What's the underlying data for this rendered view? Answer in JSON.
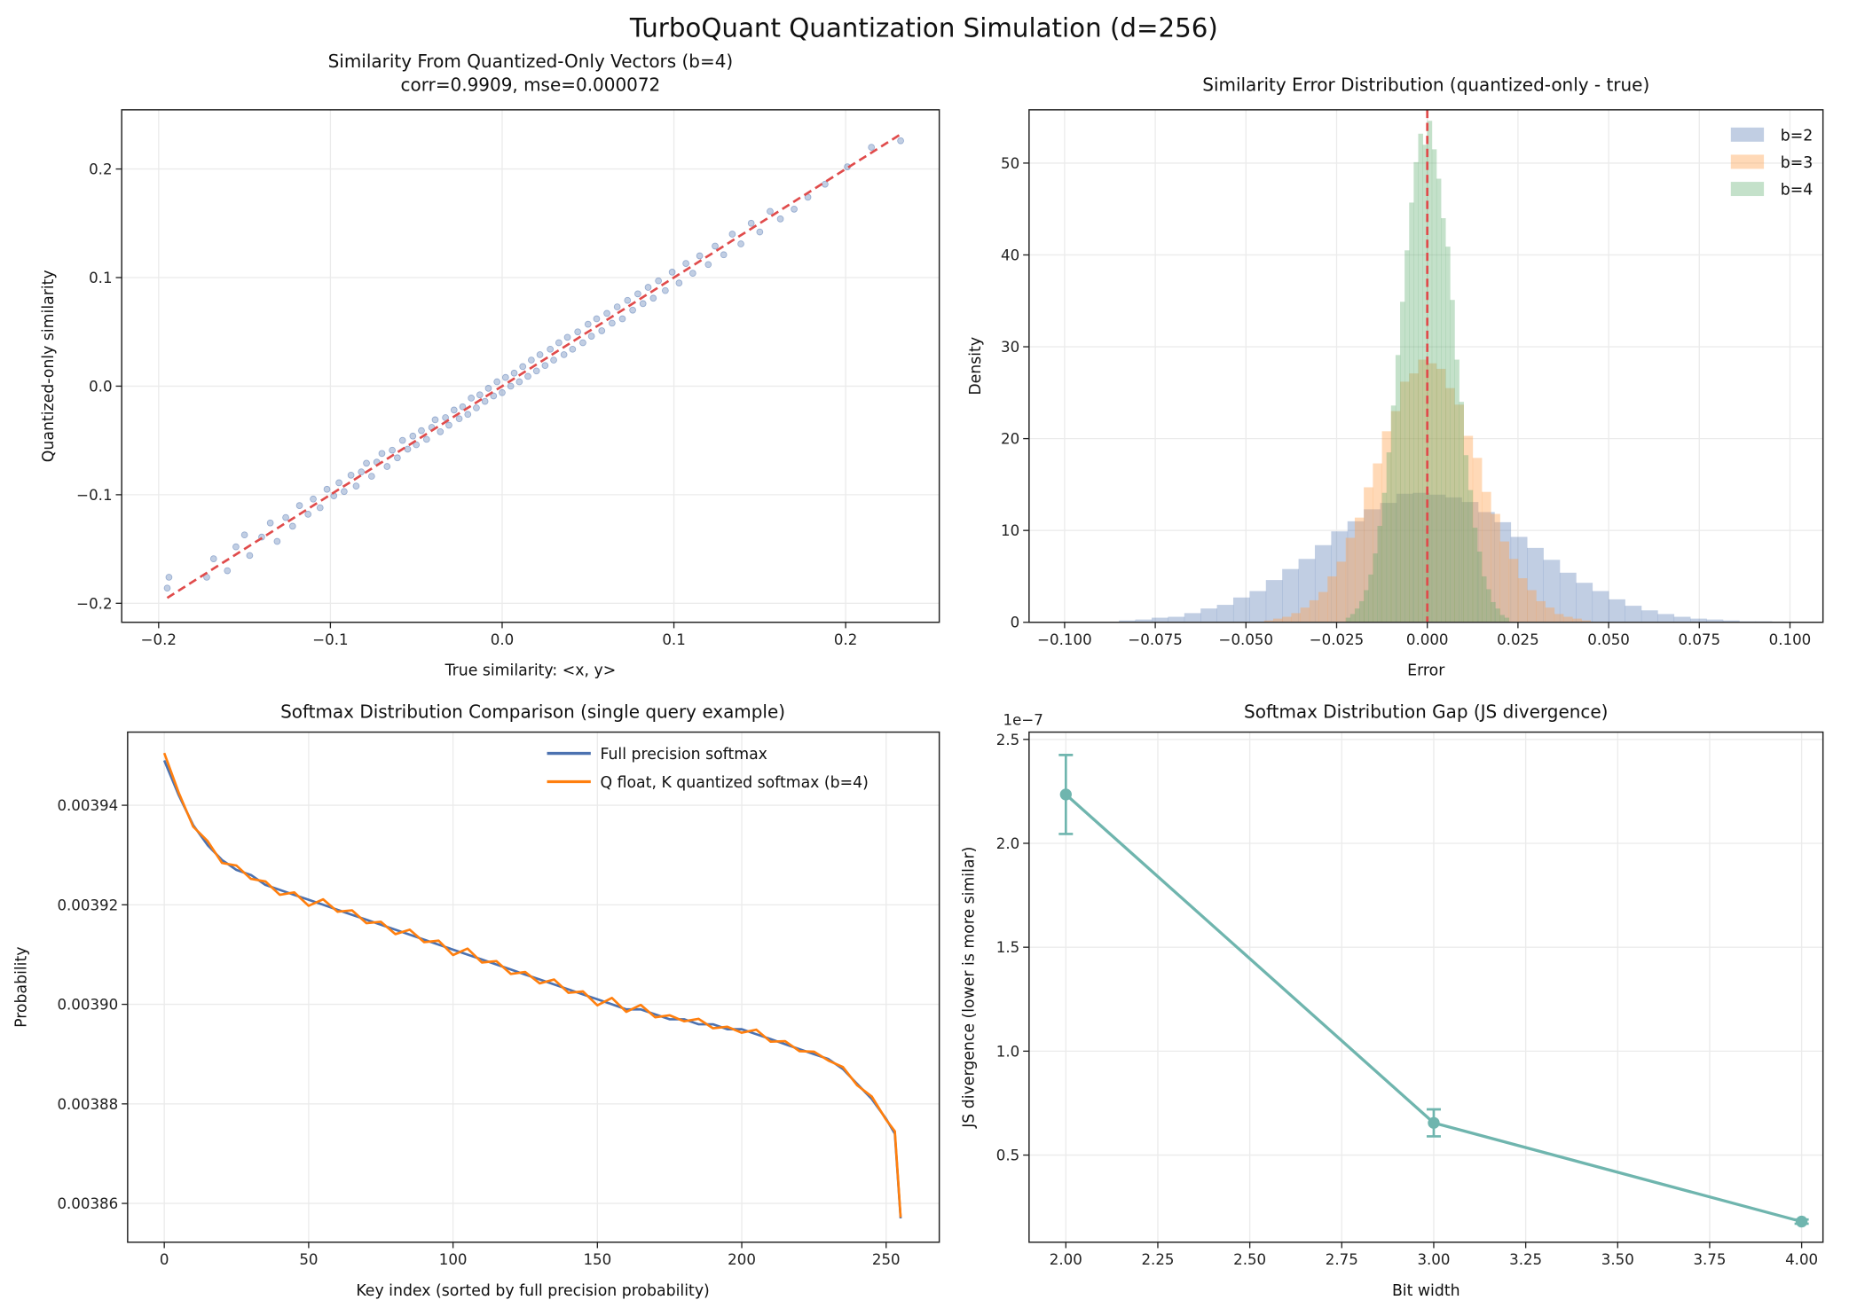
{
  "figure_title": "TurboQuant Quantization Simulation (d=256)",
  "chart_data": [
    {
      "type": "scatter",
      "title": "Similarity From Quantized-Only Vectors (b=4)",
      "subtitle": "corr=0.9909, mse=0.000072",
      "xlabel": "True similarity: <x, y>",
      "ylabel": "Quantized-only similarity",
      "xlim": [
        -0.2215,
        0.2545
      ],
      "ylim": [
        -0.2175,
        0.2545
      ],
      "grid": true,
      "x_ticks": [
        {
          "v": -0.2,
          "label": "−0.2"
        },
        {
          "v": -0.1,
          "label": "−0.1"
        },
        {
          "v": 0,
          "label": "0.0"
        },
        {
          "v": 0.1,
          "label": "0.1"
        },
        {
          "v": 0.2,
          "label": "0.2"
        }
      ],
      "y_ticks": [
        {
          "v": -0.2,
          "label": "−0.2"
        },
        {
          "v": -0.1,
          "label": "−0.1"
        },
        {
          "v": 0,
          "label": "0.0"
        },
        {
          "v": 0.1,
          "label": "0.1"
        },
        {
          "v": 0.2,
          "label": "0.2"
        }
      ],
      "point_color": "#4c72b0",
      "reference_line": {
        "from": [
          -0.195,
          -0.195
        ],
        "to": [
          0.233,
          0.233
        ],
        "color": "#e04b4b",
        "style": "dashed"
      },
      "points": [
        [
          -0.195,
          -0.186
        ],
        [
          -0.194,
          -0.176
        ],
        [
          -0.172,
          -0.176
        ],
        [
          -0.168,
          -0.159
        ],
        [
          -0.16,
          -0.17
        ],
        [
          -0.155,
          -0.148
        ],
        [
          -0.15,
          -0.137
        ],
        [
          -0.147,
          -0.156
        ],
        [
          -0.14,
          -0.139
        ],
        [
          -0.135,
          -0.126
        ],
        [
          -0.131,
          -0.143
        ],
        [
          -0.126,
          -0.121
        ],
        [
          -0.122,
          -0.129
        ],
        [
          -0.118,
          -0.11
        ],
        [
          -0.113,
          -0.118
        ],
        [
          -0.11,
          -0.104
        ],
        [
          -0.106,
          -0.112
        ],
        [
          -0.102,
          -0.095
        ],
        [
          -0.098,
          -0.101
        ],
        [
          -0.095,
          -0.089
        ],
        [
          -0.092,
          -0.097
        ],
        [
          -0.088,
          -0.082
        ],
        [
          -0.085,
          -0.092
        ],
        [
          -0.082,
          -0.079
        ],
        [
          -0.079,
          -0.071
        ],
        [
          -0.076,
          -0.083
        ],
        [
          -0.073,
          -0.07
        ],
        [
          -0.07,
          -0.062
        ],
        [
          -0.067,
          -0.074
        ],
        [
          -0.064,
          -0.059
        ],
        [
          -0.061,
          -0.066
        ],
        [
          -0.058,
          -0.05
        ],
        [
          -0.055,
          -0.058
        ],
        [
          -0.052,
          -0.046
        ],
        [
          -0.05,
          -0.054
        ],
        [
          -0.047,
          -0.041
        ],
        [
          -0.044,
          -0.049
        ],
        [
          -0.041,
          -0.038
        ],
        [
          -0.039,
          -0.031
        ],
        [
          -0.036,
          -0.042
        ],
        [
          -0.033,
          -0.029
        ],
        [
          -0.031,
          -0.036
        ],
        [
          -0.028,
          -0.022
        ],
        [
          -0.025,
          -0.03
        ],
        [
          -0.023,
          -0.019
        ],
        [
          -0.02,
          -0.026
        ],
        [
          -0.018,
          -0.011
        ],
        [
          -0.015,
          -0.02
        ],
        [
          -0.013,
          -0.008
        ],
        [
          -0.01,
          -0.014
        ],
        [
          -0.008,
          -0.002
        ],
        [
          -0.005,
          -0.009
        ],
        [
          -0.003,
          0.004
        ],
        [
          0.0,
          -0.006
        ],
        [
          0.002,
          0.008
        ],
        [
          0.005,
          0.0
        ],
        [
          0.007,
          0.012
        ],
        [
          0.01,
          0.004
        ],
        [
          0.012,
          0.018
        ],
        [
          0.015,
          0.009
        ],
        [
          0.017,
          0.024
        ],
        [
          0.02,
          0.014
        ],
        [
          0.022,
          0.029
        ],
        [
          0.025,
          0.019
        ],
        [
          0.028,
          0.034
        ],
        [
          0.03,
          0.024
        ],
        [
          0.033,
          0.04
        ],
        [
          0.036,
          0.029
        ],
        [
          0.038,
          0.045
        ],
        [
          0.041,
          0.034
        ],
        [
          0.044,
          0.05
        ],
        [
          0.047,
          0.04
        ],
        [
          0.05,
          0.057
        ],
        [
          0.052,
          0.046
        ],
        [
          0.055,
          0.062
        ],
        [
          0.058,
          0.051
        ],
        [
          0.061,
          0.067
        ],
        [
          0.064,
          0.058
        ],
        [
          0.067,
          0.073
        ],
        [
          0.07,
          0.062
        ],
        [
          0.073,
          0.079
        ],
        [
          0.076,
          0.07
        ],
        [
          0.079,
          0.085
        ],
        [
          0.082,
          0.076
        ],
        [
          0.085,
          0.091
        ],
        [
          0.088,
          0.081
        ],
        [
          0.091,
          0.097
        ],
        [
          0.095,
          0.088
        ],
        [
          0.099,
          0.105
        ],
        [
          0.103,
          0.095
        ],
        [
          0.107,
          0.113
        ],
        [
          0.111,
          0.104
        ],
        [
          0.115,
          0.12
        ],
        [
          0.12,
          0.112
        ],
        [
          0.124,
          0.129
        ],
        [
          0.129,
          0.121
        ],
        [
          0.134,
          0.14
        ],
        [
          0.139,
          0.131
        ],
        [
          0.145,
          0.15
        ],
        [
          0.15,
          0.142
        ],
        [
          0.156,
          0.161
        ],
        [
          0.162,
          0.154
        ],
        [
          0.17,
          0.163
        ],
        [
          0.178,
          0.174
        ],
        [
          0.188,
          0.186
        ],
        [
          0.201,
          0.202
        ],
        [
          0.215,
          0.22
        ],
        [
          0.232,
          0.226
        ]
      ]
    },
    {
      "type": "histogram",
      "title": "Similarity Error Distribution (quantized-only - true)",
      "xlabel": "Error",
      "ylabel": "Density",
      "xlim": [
        -0.1098,
        0.1091
      ],
      "ylim": [
        0,
        55.8
      ],
      "grid": true,
      "legend": "top-right",
      "x_ticks": [
        {
          "v": -0.1,
          "label": "−0.100"
        },
        {
          "v": -0.075,
          "label": "−0.075"
        },
        {
          "v": -0.05,
          "label": "−0.050"
        },
        {
          "v": -0.025,
          "label": "−0.025"
        },
        {
          "v": 0,
          "label": "0.000"
        },
        {
          "v": 0.025,
          "label": "0.025"
        },
        {
          "v": 0.05,
          "label": "0.050"
        },
        {
          "v": 0.075,
          "label": "0.075"
        },
        {
          "v": 0.1,
          "label": "0.100"
        }
      ],
      "y_ticks": [
        {
          "v": 0,
          "label": "0"
        },
        {
          "v": 10,
          "label": "10"
        },
        {
          "v": 20,
          "label": "20"
        },
        {
          "v": 30,
          "label": "30"
        },
        {
          "v": 40,
          "label": "40"
        },
        {
          "v": 50,
          "label": "50"
        }
      ],
      "reference_line": {
        "x": 0,
        "color": "#e04b4b",
        "style": "dashed"
      },
      "series": [
        {
          "name": "b=2",
          "color": "#4c72b0",
          "bin_start": -0.085,
          "bin_width": 0.0045,
          "density": [
            0.2,
            0.3,
            0.5,
            0.6,
            1.0,
            1.5,
            1.9,
            2.7,
            3.4,
            4.6,
            5.8,
            6.9,
            8.4,
            9.9,
            11.0,
            12.3,
            13.0,
            14.0,
            14.1,
            13.9,
            13.6,
            13.1,
            12.0,
            10.9,
            9.3,
            8.1,
            6.8,
            5.4,
            4.3,
            3.4,
            2.5,
            1.8,
            1.3,
            0.9,
            0.6,
            0.4,
            0.3,
            0.2,
            0.1,
            0.1
          ]
        },
        {
          "name": "b=3",
          "color": "#ff9f4a",
          "bin_start": -0.045,
          "bin_width": 0.0025,
          "density": [
            0.2,
            0.4,
            0.6,
            1.0,
            1.6,
            2.4,
            3.3,
            5.0,
            6.6,
            9.2,
            11.4,
            14.7,
            17.3,
            20.8,
            23.0,
            26.2,
            27.1,
            28.6,
            28.2,
            27.6,
            25.5,
            23.7,
            20.3,
            17.9,
            14.2,
            11.8,
            8.8,
            6.9,
            4.8,
            3.5,
            2.3,
            1.6,
            0.9,
            0.6,
            0.4,
            0.2
          ]
        },
        {
          "name": "b=4",
          "color": "#55a868",
          "bin_start": -0.0225,
          "bin_width": 0.00125,
          "density": [
            0.5,
            0.9,
            1.5,
            2.3,
            3.5,
            5.2,
            7.5,
            10.5,
            14.1,
            18.5,
            23.6,
            29.1,
            34.9,
            40.5,
            45.7,
            50.1,
            53.2,
            52.0,
            54.6,
            51.5,
            48.3,
            44.0,
            40.9,
            35.1,
            28.6,
            24.0,
            18.2,
            14.4,
            10.3,
            7.7,
            5.0,
            3.6,
            2.2,
            1.5,
            0.8,
            0.5
          ]
        }
      ]
    },
    {
      "type": "line",
      "title": "Softmax Distribution Comparison (single query example)",
      "xlabel": "Key index (sorted by full precision probability)",
      "ylabel": "Probability",
      "xlim": [
        -12.7,
        268.4
      ],
      "ylim": [
        0.0038522,
        0.0039547
      ],
      "grid": true,
      "legend": "top-right",
      "x_ticks": [
        {
          "v": 0,
          "label": "0"
        },
        {
          "v": 50,
          "label": "50"
        },
        {
          "v": 100,
          "label": "100"
        },
        {
          "v": 150,
          "label": "150"
        },
        {
          "v": 200,
          "label": "200"
        },
        {
          "v": 250,
          "label": "250"
        }
      ],
      "y_ticks": [
        {
          "v": 0.00386,
          "label": "0.00386"
        },
        {
          "v": 0.00388,
          "label": "0.00388"
        },
        {
          "v": 0.0039,
          "label": "0.00390"
        },
        {
          "v": 0.00392,
          "label": "0.00392"
        },
        {
          "v": 0.00394,
          "label": "0.00394"
        }
      ],
      "x": [
        0,
        5,
        10,
        15,
        20,
        25,
        30,
        35,
        40,
        45,
        50,
        55,
        60,
        65,
        70,
        75,
        80,
        85,
        90,
        95,
        100,
        105,
        110,
        115,
        120,
        125,
        130,
        135,
        140,
        145,
        150,
        155,
        160,
        165,
        170,
        175,
        180,
        185,
        190,
        195,
        200,
        205,
        210,
        215,
        220,
        225,
        230,
        235,
        240,
        245,
        250,
        253,
        255
      ],
      "series": [
        {
          "name": "Full precision softmax",
          "color": "#4c72b0",
          "values": [
            0.003949,
            0.003942,
            0.003936,
            0.003932,
            0.003929,
            0.003927,
            0.003926,
            0.003924,
            0.003923,
            0.003922,
            0.003921,
            0.00392,
            0.003919,
            0.003918,
            0.003917,
            0.003916,
            0.003915,
            0.003914,
            0.003913,
            0.003912,
            0.003911,
            0.00391,
            0.003909,
            0.003908,
            0.003907,
            0.003906,
            0.003905,
            0.003904,
            0.003903,
            0.003902,
            0.003901,
            0.0039,
            0.003899,
            0.003899,
            0.003898,
            0.003897,
            0.003897,
            0.003896,
            0.003896,
            0.003895,
            0.003895,
            0.003894,
            0.003893,
            0.003892,
            0.003891,
            0.00389,
            0.003889,
            0.003887,
            0.003884,
            0.003881,
            0.003877,
            0.003874,
            0.003857
          ]
        },
        {
          "name": "Q float, K quantized softmax (b=4)",
          "color": "#ff7f0e",
          "values": [
            0.0039505,
            0.0039425,
            0.0039357,
            0.0039328,
            0.0039284,
            0.0039279,
            0.0039252,
            0.0039247,
            0.003922,
            0.0039225,
            0.0039198,
            0.0039211,
            0.0039186,
            0.0039189,
            0.0039163,
            0.0039166,
            0.0039141,
            0.003915,
            0.0039125,
            0.0039128,
            0.0039099,
            0.0039112,
            0.0039084,
            0.0039087,
            0.0039061,
            0.0039065,
            0.0039042,
            0.003905,
            0.0039023,
            0.0039026,
            0.0038998,
            0.0039013,
            0.0038985,
            0.0038999,
            0.0038974,
            0.0038978,
            0.0038966,
            0.0038971,
            0.0038952,
            0.0038955,
            0.0038943,
            0.0038949,
            0.0038925,
            0.0038926,
            0.0038906,
            0.0038905,
            0.0038887,
            0.0038874,
            0.0038837,
            0.0038815,
            0.0038768,
            0.0038745,
            0.0038572
          ]
        }
      ]
    },
    {
      "type": "line",
      "title": "Softmax Distribution Gap (JS divergence)",
      "xlabel": "Bit width",
      "ylabel": "JS divergence (lower is more similar)",
      "y_offset_label": "1e−7",
      "xlim": [
        1.9,
        4.058
      ],
      "ylim": [
        0.0807,
        2.535
      ],
      "grid": true,
      "x_ticks": [
        {
          "v": 2,
          "label": "2.00"
        },
        {
          "v": 2.25,
          "label": "2.25"
        },
        {
          "v": 2.5,
          "label": "2.50"
        },
        {
          "v": 2.75,
          "label": "2.75"
        },
        {
          "v": 3,
          "label": "3.00"
        },
        {
          "v": 3.25,
          "label": "3.25"
        },
        {
          "v": 3.5,
          "label": "3.50"
        },
        {
          "v": 3.75,
          "label": "3.75"
        },
        {
          "v": 4,
          "label": "4.00"
        }
      ],
      "y_ticks": [
        {
          "v": 0.5,
          "label": "0.5"
        },
        {
          "v": 1.0,
          "label": "1.0"
        },
        {
          "v": 1.5,
          "label": "1.5"
        },
        {
          "v": 2.0,
          "label": "2.0"
        },
        {
          "v": 2.5,
          "label": "2.5"
        }
      ],
      "x": [
        2,
        3,
        4
      ],
      "series": [
        {
          "color": "#6fb5ae",
          "values": [
            2.235,
            0.655,
            0.18
          ],
          "errors": [
            0.19,
            0.065,
            0.01
          ]
        }
      ]
    }
  ]
}
